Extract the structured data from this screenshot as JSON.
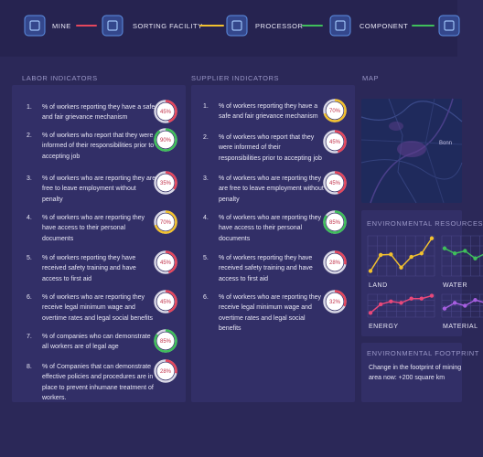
{
  "nav": {
    "steps": [
      {
        "label": "MINE",
        "color": "#e5475d"
      },
      {
        "label": "SORTING FACILITY",
        "color": "#f2c12e"
      },
      {
        "label": "PROCESSOR",
        "color": "#3fbf5b"
      },
      {
        "label": "COMPONENT",
        "color": "#3fbf5b"
      }
    ]
  },
  "labor": {
    "title": "LABOR INDICATORS",
    "items": [
      {
        "num": "1.",
        "text": "% of workers reporting they have a safe and fair grievance mechanism",
        "value": 45,
        "value_label": "45%",
        "color": "#e5475d"
      },
      {
        "num": "2.",
        "text": "% of workers who report that they were informed of their responsibilities prior to accepting job",
        "value": 90,
        "value_label": "90%",
        "color": "#3fbf5b"
      },
      {
        "num": "3.",
        "text": "% of workers who are reporting they are free to leave employment without penalty",
        "value": 35,
        "value_label": "35%",
        "color": "#e5475d"
      },
      {
        "num": "4.",
        "text": "% of workers who are reporting they have access to their personal documents",
        "value": 70,
        "value_label": "70%",
        "color": "#f2c12e"
      },
      {
        "num": "5.",
        "text": "% of workers reporting they have received safety training and have access to first aid",
        "value": 45,
        "value_label": "45%",
        "color": "#e5475d"
      },
      {
        "num": "6.",
        "text": "% of workers who are reporting they receive legal minimum wage and overtime rates and legal social benefits",
        "value": 45,
        "value_label": "45%",
        "color": "#e5475d"
      },
      {
        "num": "7.",
        "text": "% of companies who can demonstrate all workers are of legal age",
        "value": 85,
        "value_label": "85%",
        "color": "#3fbf5b"
      },
      {
        "num": "8.",
        "text": "% of Companies that can demonstrate effective policies and procedures are in place to prevent inhumane treatment of workers.",
        "value": 28,
        "value_label": "28%",
        "color": "#e5475d"
      }
    ]
  },
  "supplier": {
    "title": "SUPPLIER INDICATORS",
    "items": [
      {
        "num": "1.",
        "text": "% of workers reporting they have a safe and fair grievance mechanism",
        "value": 70,
        "value_label": "70%",
        "color": "#f2c12e"
      },
      {
        "num": "2.",
        "text": "% of workers who report that they were informed of their responsibilities prior to accepting job",
        "value": 45,
        "value_label": "45%",
        "color": "#e5475d"
      },
      {
        "num": "3.",
        "text": "% of workers who are reporting they are free to leave employment without penalty",
        "value": 45,
        "value_label": "45%",
        "color": "#e5475d"
      },
      {
        "num": "4.",
        "text": "% of workers who are reporting they have access to their personal documents",
        "value": 85,
        "value_label": "85%",
        "color": "#3fbf5b"
      },
      {
        "num": "5.",
        "text": "% of workers reporting they have received safety training and have access to first aid",
        "value": 28,
        "value_label": "28%",
        "color": "#e5475d"
      },
      {
        "num": "6.",
        "text": "% of workers who are reporting they receive legal minimum wage and overtime rates and legal social benefits",
        "value": 32,
        "value_label": "32%",
        "color": "#e5475d"
      }
    ]
  },
  "map": {
    "title": "MAP",
    "labels": [
      "Bonn"
    ]
  },
  "resources": {
    "title": "ENVIRONMENTAL RESOURCES",
    "charts": [
      {
        "name": "LAND",
        "color": "#f2c12e",
        "values": [
          1,
          4.2,
          4.3,
          1.7,
          3.8,
          4.5,
          7.5
        ],
        "ylim": [
          0,
          8
        ]
      },
      {
        "name": "WATER",
        "color": "#3fbf5b",
        "values": [
          5.5,
          4.5,
          5,
          3.5,
          4.5,
          5.5,
          6.5
        ],
        "ylim": [
          0,
          8
        ]
      },
      {
        "name": "ENERGY",
        "color": "#e8487a",
        "values": [
          1.5,
          4.5,
          5.5,
          5,
          6.5,
          6.5,
          7.5
        ],
        "ylim": [
          0,
          8
        ]
      },
      {
        "name": "MATERIAL",
        "color": "#a65ee0",
        "values": [
          3,
          5,
          4,
          6,
          5,
          6,
          7
        ],
        "ylim": [
          0,
          8
        ]
      }
    ]
  },
  "footprint": {
    "title": "ENVIRONMENTAL FOOTPRINT",
    "text": "Change in the footprint of mining area now: +200 square km"
  }
}
